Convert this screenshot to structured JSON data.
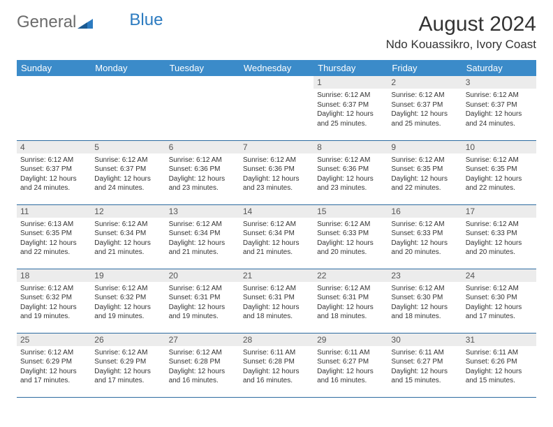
{
  "brand": {
    "text_general": "General",
    "text_blue": "Blue"
  },
  "header": {
    "month_title": "August 2024",
    "location": "Ndo Kouassikro, Ivory Coast"
  },
  "colors": {
    "header_bg": "#3b8bc9",
    "header_text": "#ffffff",
    "daynum_bg": "#ececec",
    "row_border": "#2c6aa0",
    "logo_gray": "#6b6b6b",
    "logo_blue": "#2c7bc0"
  },
  "weekdays": [
    "Sunday",
    "Monday",
    "Tuesday",
    "Wednesday",
    "Thursday",
    "Friday",
    "Saturday"
  ],
  "layout": {
    "first_weekday_index": 4,
    "days_in_month": 31
  },
  "days": [
    {
      "n": 1,
      "sunrise": "6:12 AM",
      "sunset": "6:37 PM",
      "daylight": "12 hours and 25 minutes."
    },
    {
      "n": 2,
      "sunrise": "6:12 AM",
      "sunset": "6:37 PM",
      "daylight": "12 hours and 25 minutes."
    },
    {
      "n": 3,
      "sunrise": "6:12 AM",
      "sunset": "6:37 PM",
      "daylight": "12 hours and 24 minutes."
    },
    {
      "n": 4,
      "sunrise": "6:12 AM",
      "sunset": "6:37 PM",
      "daylight": "12 hours and 24 minutes."
    },
    {
      "n": 5,
      "sunrise": "6:12 AM",
      "sunset": "6:37 PM",
      "daylight": "12 hours and 24 minutes."
    },
    {
      "n": 6,
      "sunrise": "6:12 AM",
      "sunset": "6:36 PM",
      "daylight": "12 hours and 23 minutes."
    },
    {
      "n": 7,
      "sunrise": "6:12 AM",
      "sunset": "6:36 PM",
      "daylight": "12 hours and 23 minutes."
    },
    {
      "n": 8,
      "sunrise": "6:12 AM",
      "sunset": "6:36 PM",
      "daylight": "12 hours and 23 minutes."
    },
    {
      "n": 9,
      "sunrise": "6:12 AM",
      "sunset": "6:35 PM",
      "daylight": "12 hours and 22 minutes."
    },
    {
      "n": 10,
      "sunrise": "6:12 AM",
      "sunset": "6:35 PM",
      "daylight": "12 hours and 22 minutes."
    },
    {
      "n": 11,
      "sunrise": "6:13 AM",
      "sunset": "6:35 PM",
      "daylight": "12 hours and 22 minutes."
    },
    {
      "n": 12,
      "sunrise": "6:12 AM",
      "sunset": "6:34 PM",
      "daylight": "12 hours and 21 minutes."
    },
    {
      "n": 13,
      "sunrise": "6:12 AM",
      "sunset": "6:34 PM",
      "daylight": "12 hours and 21 minutes."
    },
    {
      "n": 14,
      "sunrise": "6:12 AM",
      "sunset": "6:34 PM",
      "daylight": "12 hours and 21 minutes."
    },
    {
      "n": 15,
      "sunrise": "6:12 AM",
      "sunset": "6:33 PM",
      "daylight": "12 hours and 20 minutes."
    },
    {
      "n": 16,
      "sunrise": "6:12 AM",
      "sunset": "6:33 PM",
      "daylight": "12 hours and 20 minutes."
    },
    {
      "n": 17,
      "sunrise": "6:12 AM",
      "sunset": "6:33 PM",
      "daylight": "12 hours and 20 minutes."
    },
    {
      "n": 18,
      "sunrise": "6:12 AM",
      "sunset": "6:32 PM",
      "daylight": "12 hours and 19 minutes."
    },
    {
      "n": 19,
      "sunrise": "6:12 AM",
      "sunset": "6:32 PM",
      "daylight": "12 hours and 19 minutes."
    },
    {
      "n": 20,
      "sunrise": "6:12 AM",
      "sunset": "6:31 PM",
      "daylight": "12 hours and 19 minutes."
    },
    {
      "n": 21,
      "sunrise": "6:12 AM",
      "sunset": "6:31 PM",
      "daylight": "12 hours and 18 minutes."
    },
    {
      "n": 22,
      "sunrise": "6:12 AM",
      "sunset": "6:31 PM",
      "daylight": "12 hours and 18 minutes."
    },
    {
      "n": 23,
      "sunrise": "6:12 AM",
      "sunset": "6:30 PM",
      "daylight": "12 hours and 18 minutes."
    },
    {
      "n": 24,
      "sunrise": "6:12 AM",
      "sunset": "6:30 PM",
      "daylight": "12 hours and 17 minutes."
    },
    {
      "n": 25,
      "sunrise": "6:12 AM",
      "sunset": "6:29 PM",
      "daylight": "12 hours and 17 minutes."
    },
    {
      "n": 26,
      "sunrise": "6:12 AM",
      "sunset": "6:29 PM",
      "daylight": "12 hours and 17 minutes."
    },
    {
      "n": 27,
      "sunrise": "6:12 AM",
      "sunset": "6:28 PM",
      "daylight": "12 hours and 16 minutes."
    },
    {
      "n": 28,
      "sunrise": "6:11 AM",
      "sunset": "6:28 PM",
      "daylight": "12 hours and 16 minutes."
    },
    {
      "n": 29,
      "sunrise": "6:11 AM",
      "sunset": "6:27 PM",
      "daylight": "12 hours and 16 minutes."
    },
    {
      "n": 30,
      "sunrise": "6:11 AM",
      "sunset": "6:27 PM",
      "daylight": "12 hours and 15 minutes."
    },
    {
      "n": 31,
      "sunrise": "6:11 AM",
      "sunset": "6:26 PM",
      "daylight": "12 hours and 15 minutes."
    }
  ],
  "labels": {
    "sunrise": "Sunrise:",
    "sunset": "Sunset:",
    "daylight": "Daylight:"
  }
}
